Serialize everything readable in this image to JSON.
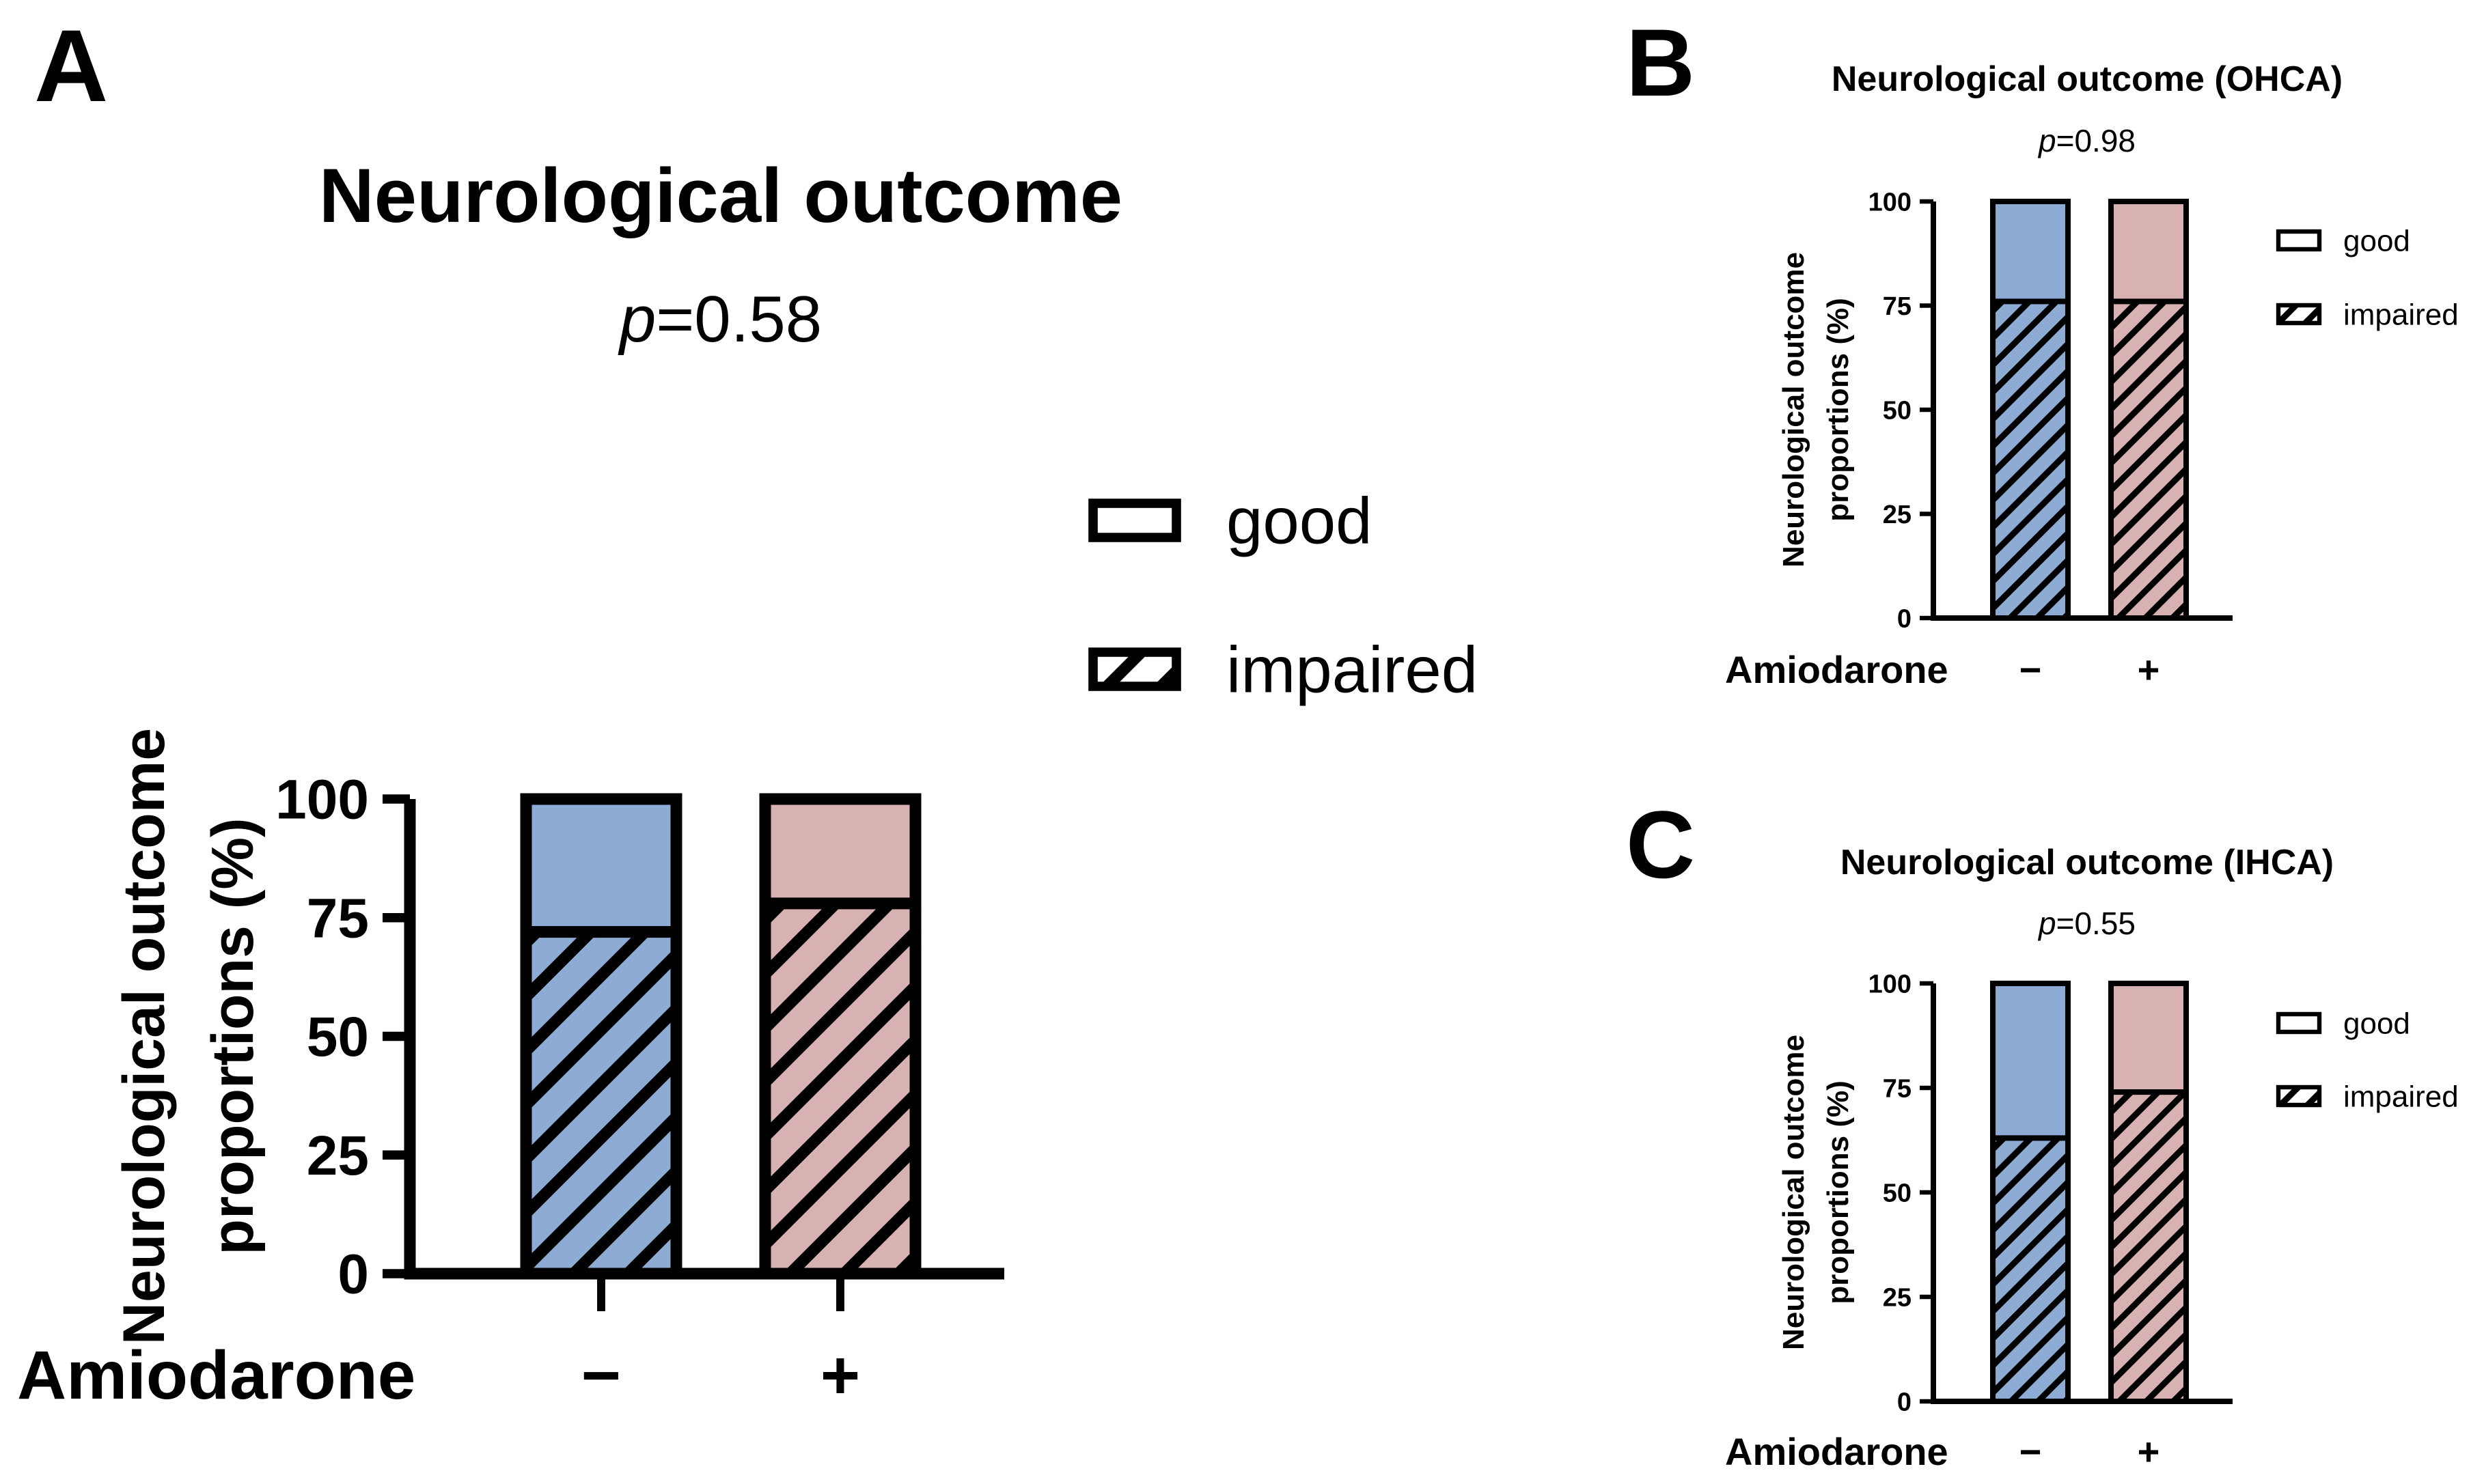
{
  "colors": {
    "minus": "#8eabd3",
    "plus": "#d8b1b2",
    "stroke": "#000000"
  },
  "chart_data": [
    {
      "panel": "A",
      "type": "bar",
      "stacked": true,
      "title": "Neurological outcome",
      "p_prefix": "p",
      "p_value": "=0.58",
      "ylabel_line1": "Neurological outcome",
      "ylabel_line2": "proportions (%)",
      "xlabel": "Amiodarone",
      "categories": [
        "−",
        "+"
      ],
      "yticks": [
        "0",
        "25",
        "50",
        "75",
        "100"
      ],
      "ylim": [
        0,
        100
      ],
      "series": [
        {
          "name": "impaired",
          "values": [
            72,
            78
          ]
        },
        {
          "name": "good",
          "values": [
            28,
            22
          ]
        }
      ],
      "legend": [
        "good",
        "impaired"
      ],
      "legend_position": "right"
    },
    {
      "panel": "B",
      "type": "bar",
      "stacked": true,
      "title": "Neurological outcome (OHCA)",
      "p_prefix": "p",
      "p_value": "=0.98",
      "ylabel_line1": "Neurological outcome",
      "ylabel_line2": "proportions (%)",
      "xlabel": "Amiodarone",
      "categories": [
        "−",
        "+"
      ],
      "yticks": [
        "0",
        "25",
        "50",
        "75",
        "100"
      ],
      "ylim": [
        0,
        100
      ],
      "series": [
        {
          "name": "impaired",
          "values": [
            76,
            76
          ]
        },
        {
          "name": "good",
          "values": [
            24,
            24
          ]
        }
      ],
      "legend": [
        "good",
        "impaired"
      ],
      "legend_position": "right"
    },
    {
      "panel": "C",
      "type": "bar",
      "stacked": true,
      "title": "Neurological outcome (IHCA)",
      "p_prefix": "p",
      "p_value": "=0.55",
      "ylabel_line1": "Neurological outcome",
      "ylabel_line2": "proportions (%)",
      "xlabel": "Amiodarone",
      "categories": [
        "−",
        "+"
      ],
      "yticks": [
        "0",
        "25",
        "50",
        "75",
        "100"
      ],
      "ylim": [
        0,
        100
      ],
      "series": [
        {
          "name": "impaired",
          "values": [
            63,
            74
          ]
        },
        {
          "name": "good",
          "values": [
            37,
            26
          ]
        }
      ],
      "legend": [
        "good",
        "impaired"
      ],
      "legend_position": "right"
    }
  ]
}
